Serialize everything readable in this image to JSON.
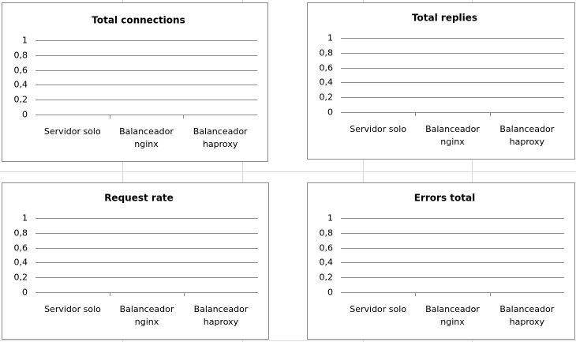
{
  "chart_data": [
    {
      "type": "bar",
      "title": "Total connections",
      "categories": [
        "Servidor solo",
        "Balanceador nginx",
        "Balanceador haproxy"
      ],
      "values": [
        null,
        null,
        null
      ],
      "ylim": [
        0,
        1
      ],
      "yticks": [
        0,
        {
          "value": 0.2,
          "label": "0,2"
        },
        {
          "value": 0.4,
          "label": "0,4"
        },
        {
          "value": 0.6,
          "label": "0,6"
        },
        {
          "value": 0.8,
          "label": "0,8"
        },
        1
      ],
      "grid": true
    },
    {
      "type": "bar",
      "title": "Total replies",
      "categories": [
        "Servidor solo",
        "Balanceador nginx",
        "Balanceador haproxy"
      ],
      "values": [
        null,
        null,
        null
      ],
      "ylim": [
        0,
        1
      ],
      "yticks": [
        0,
        {
          "value": 0.2,
          "label": "0,2"
        },
        {
          "value": 0.4,
          "label": "0,4"
        },
        {
          "value": 0.6,
          "label": "0,6"
        },
        {
          "value": 0.8,
          "label": "0,8"
        },
        1
      ],
      "grid": true
    },
    {
      "type": "bar",
      "title": "Request rate",
      "categories": [
        "Servidor solo",
        "Balanceador nginx",
        "Balanceador haproxy"
      ],
      "values": [
        null,
        null,
        null
      ],
      "ylim": [
        0,
        1
      ],
      "yticks": [
        0,
        {
          "value": 0.2,
          "label": "0,2"
        },
        {
          "value": 0.4,
          "label": "0,4"
        },
        {
          "value": 0.6,
          "label": "0,6"
        },
        {
          "value": 0.8,
          "label": "0,8"
        },
        1
      ],
      "grid": true
    },
    {
      "type": "bar",
      "title": "Errors total",
      "categories": [
        "Servidor solo",
        "Balanceador nginx",
        "Balanceador haproxy"
      ],
      "values": [
        null,
        null,
        null
      ],
      "ylim": [
        0,
        1
      ],
      "yticks": [
        0,
        {
          "value": 0.2,
          "label": "0,2"
        },
        {
          "value": 0.4,
          "label": "0,4"
        },
        {
          "value": 0.6,
          "label": "0,6"
        },
        {
          "value": 0.8,
          "label": "0,8"
        },
        1
      ],
      "grid": true
    }
  ]
}
